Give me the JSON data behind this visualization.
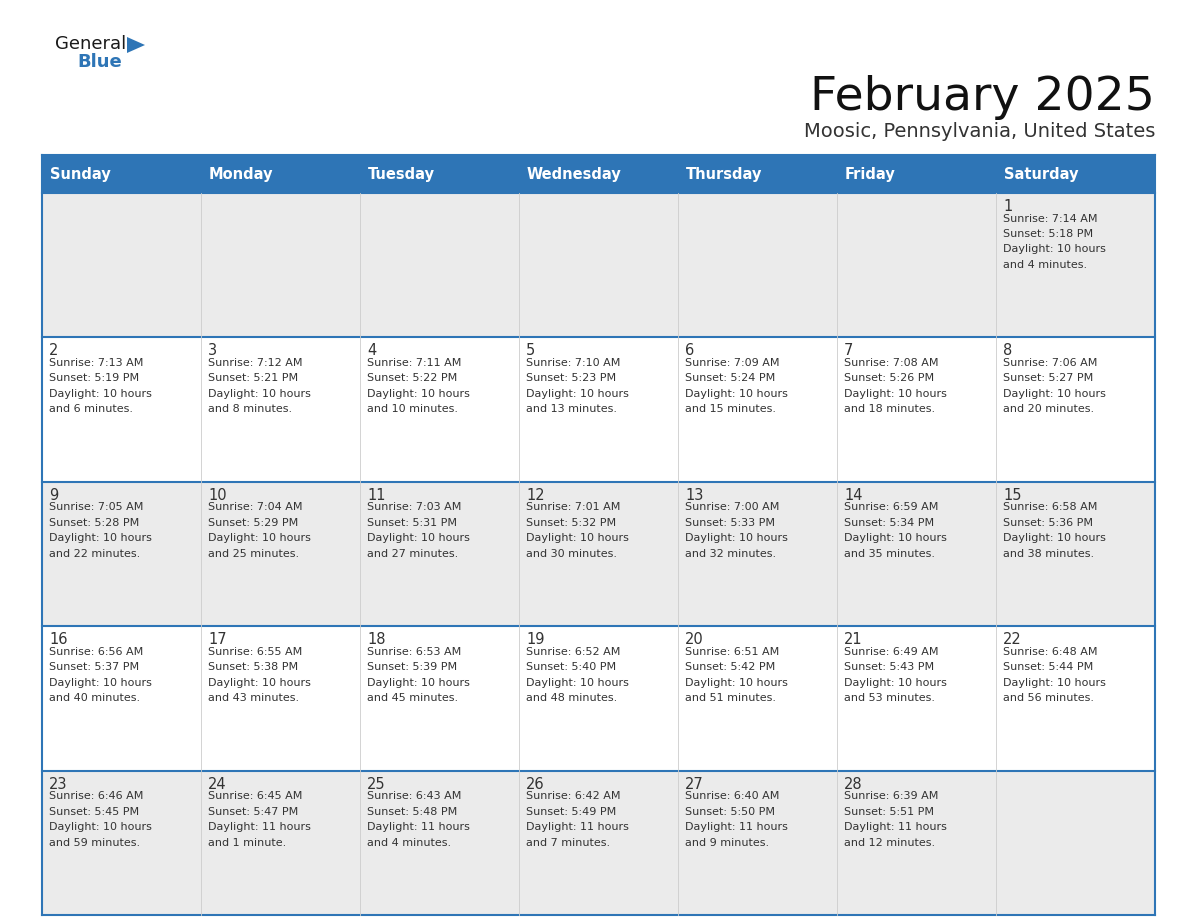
{
  "title": "February 2025",
  "subtitle": "Moosic, Pennsylvania, United States",
  "header_bg": "#2E75B6",
  "header_text_color": "#FFFFFF",
  "day_headers": [
    "Sunday",
    "Monday",
    "Tuesday",
    "Wednesday",
    "Thursday",
    "Friday",
    "Saturday"
  ],
  "cell_bg_white": "#FFFFFF",
  "cell_bg_gray": "#EBEBEB",
  "date_color": "#333333",
  "info_color": "#333333",
  "divider_color": "#2E75B6",
  "background_color": "#FFFFFF",
  "logo_general_color": "#1a1a1a",
  "logo_blue_color": "#2E75B6",
  "days": [
    {
      "day": 1,
      "col": 6,
      "row": 0,
      "sunrise": "7:14 AM",
      "sunset": "5:18 PM",
      "daylight_line1": "Daylight: 10 hours",
      "daylight_line2": "and 4 minutes."
    },
    {
      "day": 2,
      "col": 0,
      "row": 1,
      "sunrise": "7:13 AM",
      "sunset": "5:19 PM",
      "daylight_line1": "Daylight: 10 hours",
      "daylight_line2": "and 6 minutes."
    },
    {
      "day": 3,
      "col": 1,
      "row": 1,
      "sunrise": "7:12 AM",
      "sunset": "5:21 PM",
      "daylight_line1": "Daylight: 10 hours",
      "daylight_line2": "and 8 minutes."
    },
    {
      "day": 4,
      "col": 2,
      "row": 1,
      "sunrise": "7:11 AM",
      "sunset": "5:22 PM",
      "daylight_line1": "Daylight: 10 hours",
      "daylight_line2": "and 10 minutes."
    },
    {
      "day": 5,
      "col": 3,
      "row": 1,
      "sunrise": "7:10 AM",
      "sunset": "5:23 PM",
      "daylight_line1": "Daylight: 10 hours",
      "daylight_line2": "and 13 minutes."
    },
    {
      "day": 6,
      "col": 4,
      "row": 1,
      "sunrise": "7:09 AM",
      "sunset": "5:24 PM",
      "daylight_line1": "Daylight: 10 hours",
      "daylight_line2": "and 15 minutes."
    },
    {
      "day": 7,
      "col": 5,
      "row": 1,
      "sunrise": "7:08 AM",
      "sunset": "5:26 PM",
      "daylight_line1": "Daylight: 10 hours",
      "daylight_line2": "and 18 minutes."
    },
    {
      "day": 8,
      "col": 6,
      "row": 1,
      "sunrise": "7:06 AM",
      "sunset": "5:27 PM",
      "daylight_line1": "Daylight: 10 hours",
      "daylight_line2": "and 20 minutes."
    },
    {
      "day": 9,
      "col": 0,
      "row": 2,
      "sunrise": "7:05 AM",
      "sunset": "5:28 PM",
      "daylight_line1": "Daylight: 10 hours",
      "daylight_line2": "and 22 minutes."
    },
    {
      "day": 10,
      "col": 1,
      "row": 2,
      "sunrise": "7:04 AM",
      "sunset": "5:29 PM",
      "daylight_line1": "Daylight: 10 hours",
      "daylight_line2": "and 25 minutes."
    },
    {
      "day": 11,
      "col": 2,
      "row": 2,
      "sunrise": "7:03 AM",
      "sunset": "5:31 PM",
      "daylight_line1": "Daylight: 10 hours",
      "daylight_line2": "and 27 minutes."
    },
    {
      "day": 12,
      "col": 3,
      "row": 2,
      "sunrise": "7:01 AM",
      "sunset": "5:32 PM",
      "daylight_line1": "Daylight: 10 hours",
      "daylight_line2": "and 30 minutes."
    },
    {
      "day": 13,
      "col": 4,
      "row": 2,
      "sunrise": "7:00 AM",
      "sunset": "5:33 PM",
      "daylight_line1": "Daylight: 10 hours",
      "daylight_line2": "and 32 minutes."
    },
    {
      "day": 14,
      "col": 5,
      "row": 2,
      "sunrise": "6:59 AM",
      "sunset": "5:34 PM",
      "daylight_line1": "Daylight: 10 hours",
      "daylight_line2": "and 35 minutes."
    },
    {
      "day": 15,
      "col": 6,
      "row": 2,
      "sunrise": "6:58 AM",
      "sunset": "5:36 PM",
      "daylight_line1": "Daylight: 10 hours",
      "daylight_line2": "and 38 minutes."
    },
    {
      "day": 16,
      "col": 0,
      "row": 3,
      "sunrise": "6:56 AM",
      "sunset": "5:37 PM",
      "daylight_line1": "Daylight: 10 hours",
      "daylight_line2": "and 40 minutes."
    },
    {
      "day": 17,
      "col": 1,
      "row": 3,
      "sunrise": "6:55 AM",
      "sunset": "5:38 PM",
      "daylight_line1": "Daylight: 10 hours",
      "daylight_line2": "and 43 minutes."
    },
    {
      "day": 18,
      "col": 2,
      "row": 3,
      "sunrise": "6:53 AM",
      "sunset": "5:39 PM",
      "daylight_line1": "Daylight: 10 hours",
      "daylight_line2": "and 45 minutes."
    },
    {
      "day": 19,
      "col": 3,
      "row": 3,
      "sunrise": "6:52 AM",
      "sunset": "5:40 PM",
      "daylight_line1": "Daylight: 10 hours",
      "daylight_line2": "and 48 minutes."
    },
    {
      "day": 20,
      "col": 4,
      "row": 3,
      "sunrise": "6:51 AM",
      "sunset": "5:42 PM",
      "daylight_line1": "Daylight: 10 hours",
      "daylight_line2": "and 51 minutes."
    },
    {
      "day": 21,
      "col": 5,
      "row": 3,
      "sunrise": "6:49 AM",
      "sunset": "5:43 PM",
      "daylight_line1": "Daylight: 10 hours",
      "daylight_line2": "and 53 minutes."
    },
    {
      "day": 22,
      "col": 6,
      "row": 3,
      "sunrise": "6:48 AM",
      "sunset": "5:44 PM",
      "daylight_line1": "Daylight: 10 hours",
      "daylight_line2": "and 56 minutes."
    },
    {
      "day": 23,
      "col": 0,
      "row": 4,
      "sunrise": "6:46 AM",
      "sunset": "5:45 PM",
      "daylight_line1": "Daylight: 10 hours",
      "daylight_line2": "and 59 minutes."
    },
    {
      "day": 24,
      "col": 1,
      "row": 4,
      "sunrise": "6:45 AM",
      "sunset": "5:47 PM",
      "daylight_line1": "Daylight: 11 hours",
      "daylight_line2": "and 1 minute."
    },
    {
      "day": 25,
      "col": 2,
      "row": 4,
      "sunrise": "6:43 AM",
      "sunset": "5:48 PM",
      "daylight_line1": "Daylight: 11 hours",
      "daylight_line2": "and 4 minutes."
    },
    {
      "day": 26,
      "col": 3,
      "row": 4,
      "sunrise": "6:42 AM",
      "sunset": "5:49 PM",
      "daylight_line1": "Daylight: 11 hours",
      "daylight_line2": "and 7 minutes."
    },
    {
      "day": 27,
      "col": 4,
      "row": 4,
      "sunrise": "6:40 AM",
      "sunset": "5:50 PM",
      "daylight_line1": "Daylight: 11 hours",
      "daylight_line2": "and 9 minutes."
    },
    {
      "day": 28,
      "col": 5,
      "row": 4,
      "sunrise": "6:39 AM",
      "sunset": "5:51 PM",
      "daylight_line1": "Daylight: 11 hours",
      "daylight_line2": "and 12 minutes."
    }
  ]
}
